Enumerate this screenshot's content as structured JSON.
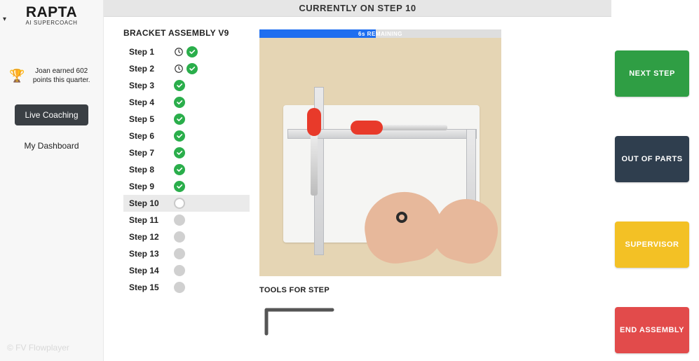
{
  "brand": {
    "name": "RAPTA",
    "subtitle": "AI SUPERCOACH"
  },
  "sidebar": {
    "achievement_text": "Joan earned 602 points this quarter.",
    "live_coaching_label": "Live Coaching",
    "my_dashboard_label": "My Dashboard"
  },
  "header": {
    "title": "CURRENTLY ON STEP 10"
  },
  "steps": {
    "title": "BRACKET ASSEMBLY V9",
    "items": [
      {
        "label": "Step 1",
        "status": "done",
        "has_clock": true
      },
      {
        "label": "Step 2",
        "status": "done",
        "has_clock": true
      },
      {
        "label": "Step 3",
        "status": "done",
        "has_clock": false
      },
      {
        "label": "Step 4",
        "status": "done",
        "has_clock": false
      },
      {
        "label": "Step 5",
        "status": "done",
        "has_clock": false
      },
      {
        "label": "Step 6",
        "status": "done",
        "has_clock": false
      },
      {
        "label": "Step 7",
        "status": "done",
        "has_clock": false
      },
      {
        "label": "Step 8",
        "status": "done",
        "has_clock": false
      },
      {
        "label": "Step 9",
        "status": "done",
        "has_clock": false
      },
      {
        "label": "Step 10",
        "status": "current",
        "has_clock": false
      },
      {
        "label": "Step 11",
        "status": "pending",
        "has_clock": false
      },
      {
        "label": "Step 12",
        "status": "pending",
        "has_clock": false
      },
      {
        "label": "Step 13",
        "status": "pending",
        "has_clock": false
      },
      {
        "label": "Step 14",
        "status": "pending",
        "has_clock": false
      },
      {
        "label": "Step 15",
        "status": "pending",
        "has_clock": false
      }
    ]
  },
  "video": {
    "progress_label": "6s REMAINING",
    "progress_pct": 48,
    "tools_label": "TOOLS FOR STEP"
  },
  "actions": {
    "next": {
      "label": "NEXT STEP",
      "color": "#2f9e44"
    },
    "out": {
      "label": "OUT OF PARTS",
      "color": "#2f3e4e"
    },
    "supervisor": {
      "label": "SUPERVISOR",
      "color": "#f3c125"
    },
    "end": {
      "label": "END ASSEMBLY",
      "color": "#e24b4b"
    }
  },
  "watermark": "© FV Flowplayer",
  "colors": {
    "sidebar_bg": "#f7f7f7",
    "header_bg": "#e6e6e6",
    "progress_fill": "#1e6ef0",
    "check_green": "#2aae4b"
  }
}
